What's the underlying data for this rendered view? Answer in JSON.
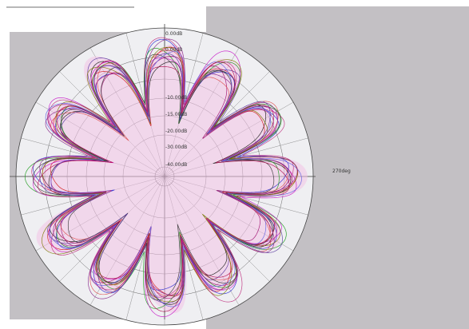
{
  "chart_data": {
    "type": "line",
    "polar": true,
    "radial_tick_labels": [
      "0.00dB",
      "0.00dB",
      "-10.00dB",
      "-15.00dB",
      "-20.00dB",
      "-30.00dB",
      "-40.00dB"
    ],
    "angle_label": "270deg",
    "petals": 12,
    "series_count": 14,
    "series_colors": [
      "#1b1b1b",
      "#d11a1a",
      "#2a2ad0",
      "#1a9a1a",
      "#c818c8",
      "#a01070",
      "#e05050",
      "#5a3aa0",
      "#7a7a00",
      "#c03080",
      "#3a3a3a",
      "#b01050",
      "#6060e0",
      "#8a2a8a"
    ]
  },
  "colors": {
    "panel_gray": "#c3c0c4",
    "pink_fill": "#f2c2e6",
    "grid": "#555555"
  }
}
